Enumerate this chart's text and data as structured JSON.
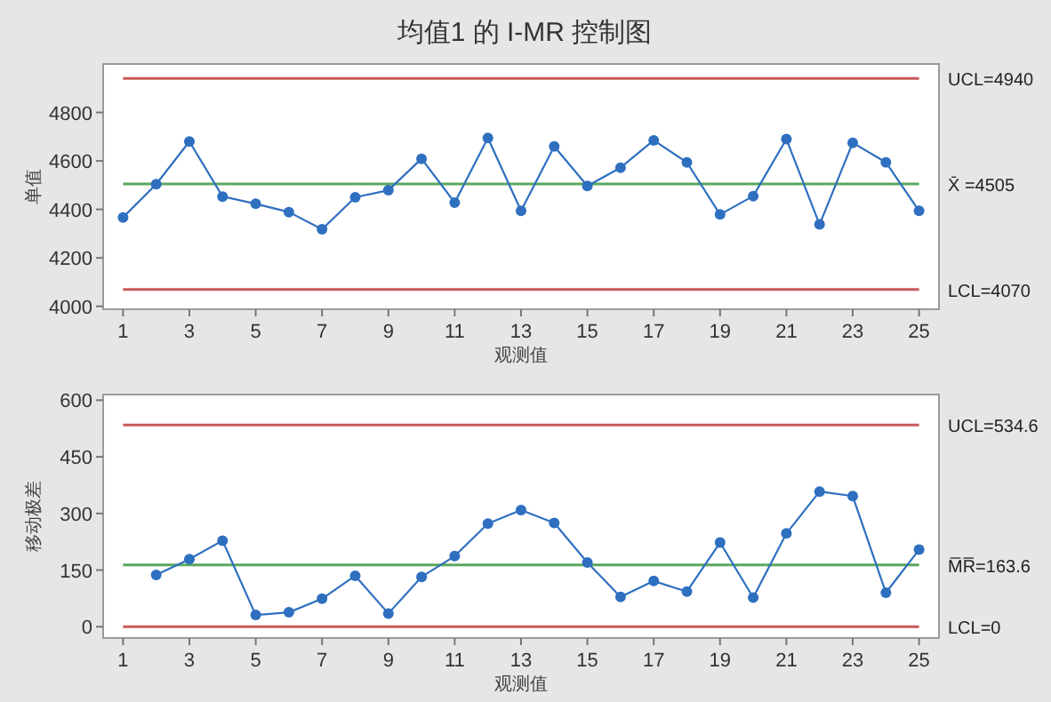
{
  "chart_data": [
    {
      "type": "line",
      "title": "均值1 的 I-MR 控制图",
      "xlabel": "观测值",
      "ylabel": "单值",
      "marker": "circle",
      "line_style": "solid",
      "grid": false,
      "x": [
        1,
        2,
        3,
        4,
        5,
        6,
        7,
        8,
        9,
        10,
        11,
        12,
        13,
        14,
        15,
        16,
        17,
        18,
        19,
        20,
        21,
        22,
        23,
        24,
        25
      ],
      "series": [
        {
          "color": "#2e6fc0",
          "values": [
            4367,
            4504,
            4680,
            4453,
            4423,
            4389,
            4318,
            4450,
            4479,
            4609,
            4428,
            4695,
            4394,
            4660,
            4497,
            4572,
            4685,
            4594,
            4379,
            4455,
            4690,
            4338,
            4675,
            4594,
            4394
          ]
        }
      ],
      "xlim": [
        0.4,
        25.6
      ],
      "xticks": [
        1,
        3,
        5,
        7,
        9,
        11,
        13,
        15,
        17,
        19,
        21,
        23,
        25
      ],
      "ylim": [
        3988,
        5000
      ],
      "yticks": [
        4000,
        4200,
        4400,
        4600,
        4800
      ],
      "ref_lines": [
        {
          "axis": "y",
          "value": 4940,
          "label": "UCL=4940",
          "color": "#c8585a"
        },
        {
          "axis": "y",
          "value": 4505,
          "label": "X̄ =4505",
          "color": "#5aa85e"
        },
        {
          "axis": "y",
          "value": 4070,
          "label": "LCL=4070",
          "color": "#c8585a"
        }
      ]
    },
    {
      "type": "line",
      "xlabel": "观测值",
      "ylabel": "移动极差",
      "marker": "circle",
      "line_style": "solid",
      "grid": false,
      "x": [
        2,
        3,
        4,
        5,
        6,
        7,
        8,
        9,
        10,
        11,
        12,
        13,
        14,
        15,
        16,
        17,
        18,
        19,
        20,
        21,
        22,
        23,
        24,
        25
      ],
      "series": [
        {
          "color": "#2e6fc0",
          "values": [
            137,
            179,
            228,
            31,
            38,
            74,
            135,
            35,
            132,
            187,
            273,
            309,
            275,
            170,
            79,
            121,
            93,
            223,
            77,
            247,
            358,
            346,
            90,
            204
          ]
        }
      ],
      "xlim": [
        0.4,
        25.6
      ],
      "xticks": [
        1,
        3,
        5,
        7,
        9,
        11,
        13,
        15,
        17,
        19,
        21,
        23,
        25
      ],
      "ylim": [
        -30,
        615
      ],
      "yticks": [
        0,
        150,
        300,
        450,
        600
      ],
      "ref_lines": [
        {
          "axis": "y",
          "value": 534.6,
          "label": "UCL=534.6",
          "color": "#c8585a"
        },
        {
          "axis": "y",
          "value": 163.6,
          "label": "M̅R̅=163.6",
          "color": "#5aa85e"
        },
        {
          "axis": "y",
          "value": 0,
          "label": "LCL=0",
          "color": "#c8585a"
        }
      ]
    }
  ]
}
